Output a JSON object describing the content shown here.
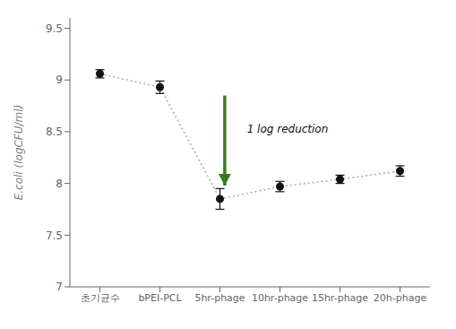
{
  "chart_data": {
    "type": "line",
    "categories": [
      "초기균수",
      "bPEI-PCL",
      "5hr-phage",
      "10hr-phage",
      "15hr-phage",
      "20h-phage"
    ],
    "values": [
      9.06,
      8.93,
      7.85,
      7.97,
      8.04,
      8.12
    ],
    "errors": [
      0.04,
      0.06,
      0.1,
      0.05,
      0.04,
      0.05
    ],
    "ylabel": "E.coli (logCFU/ml)",
    "ylim": [
      7.0,
      9.6
    ],
    "yticks": [
      7,
      7.5,
      8,
      8.5,
      9,
      9.5
    ],
    "color": "#aaaaaa",
    "colors": [
      "#111111",
      "#111111",
      "#111111",
      "#111111",
      "#111111",
      "#111111"
    ],
    "line_style": "dotted",
    "marker": "o",
    "grid": false,
    "annotations": [
      {
        "text": "1 log reduction",
        "x": 2.45,
        "y": 8.52
      }
    ],
    "arrow": {
      "x": 2.08,
      "y_start": 8.85,
      "y_end": 7.98,
      "color": "#3a7a1e"
    }
  }
}
